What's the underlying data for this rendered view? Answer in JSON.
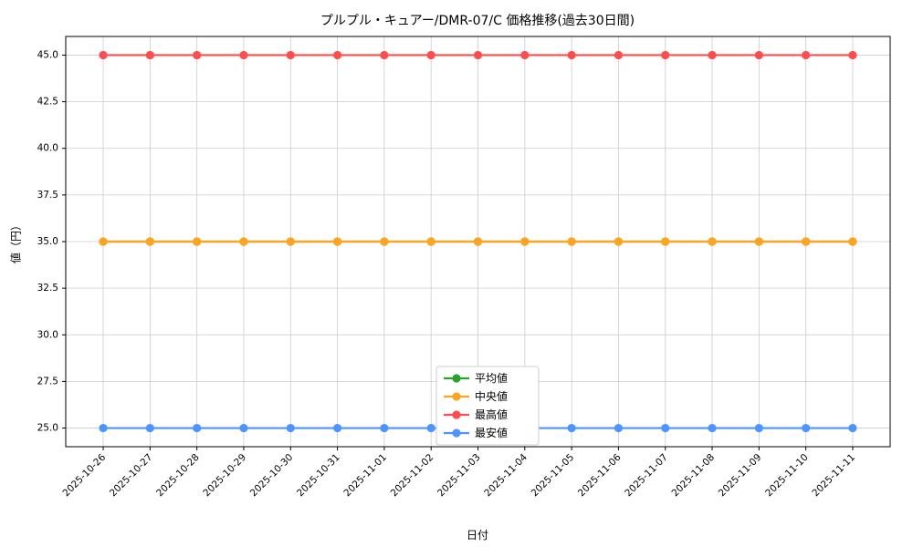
{
  "figure": {
    "title": "プルプル・キュアー/DMR-07/C 価格推移(過去30日間)",
    "xlabel": "日付",
    "ylabel": "値（円）"
  },
  "chart_data": {
    "type": "line",
    "title": "プルプル・キュアー/DMR-07/C 価格推移(過去30日間)",
    "xlabel": "日付",
    "ylabel": "値（円）",
    "x": [
      "2025-10-26",
      "2025-10-27",
      "2025-10-28",
      "2025-10-29",
      "2025-10-30",
      "2025-10-31",
      "2025-11-01",
      "2025-11-02",
      "2025-11-03",
      "2025-11-04",
      "2025-11-05",
      "2025-11-06",
      "2025-11-07",
      "2025-11-08",
      "2025-11-09",
      "2025-11-10",
      "2025-11-11"
    ],
    "series": [
      {
        "name": "平均値",
        "key": "average",
        "color": "#2ca02c",
        "values": [
          35,
          35,
          35,
          35,
          35,
          35,
          35,
          35,
          35,
          35,
          35,
          35,
          35,
          35,
          35,
          35,
          35
        ]
      },
      {
        "name": "中央値",
        "key": "median",
        "color": "#ffa421",
        "values": [
          35,
          35,
          35,
          35,
          35,
          35,
          35,
          35,
          35,
          35,
          35,
          35,
          35,
          35,
          35,
          35,
          35
        ]
      },
      {
        "name": "最高値",
        "key": "max",
        "color": "#ff4d4d",
        "values": [
          45,
          45,
          45,
          45,
          45,
          45,
          45,
          45,
          45,
          45,
          45,
          45,
          45,
          45,
          45,
          45,
          45
        ]
      },
      {
        "name": "最安値",
        "key": "min",
        "color": "#4d94ff",
        "values": [
          25,
          25,
          25,
          25,
          25,
          25,
          25,
          25,
          25,
          25,
          25,
          25,
          25,
          25,
          25,
          25,
          25
        ]
      }
    ],
    "ylim": [
      24,
      46
    ],
    "yticks": [
      25.0,
      27.5,
      30.0,
      32.5,
      35.0,
      37.5,
      40.0,
      42.5,
      45.0
    ],
    "grid": true,
    "legend": {
      "position": "lower-center-inside",
      "entries": [
        "平均値",
        "中央値",
        "最高値",
        "最安値"
      ]
    },
    "note_overlap": "平均値 (green) overlaps 中央値 (orange) at 35"
  }
}
